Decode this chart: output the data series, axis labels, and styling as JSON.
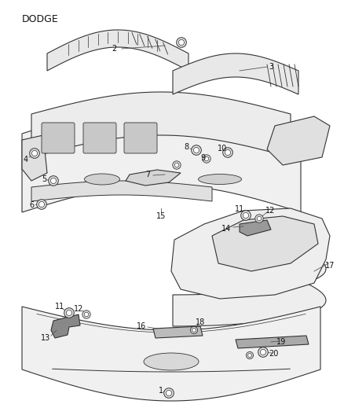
{
  "title": "DODGE",
  "bg_color": "#ffffff",
  "line_color": "#333333",
  "text_color": "#111111",
  "title_fontsize": 9,
  "label_fontsize": 7,
  "figsize": [
    4.38,
    5.33
  ],
  "dpi": 100,
  "line_width": 0.8,
  "gray_fill": "#e8e8e8",
  "dark_fill": "#cccccc",
  "medium_fill": "#d8d8d8"
}
